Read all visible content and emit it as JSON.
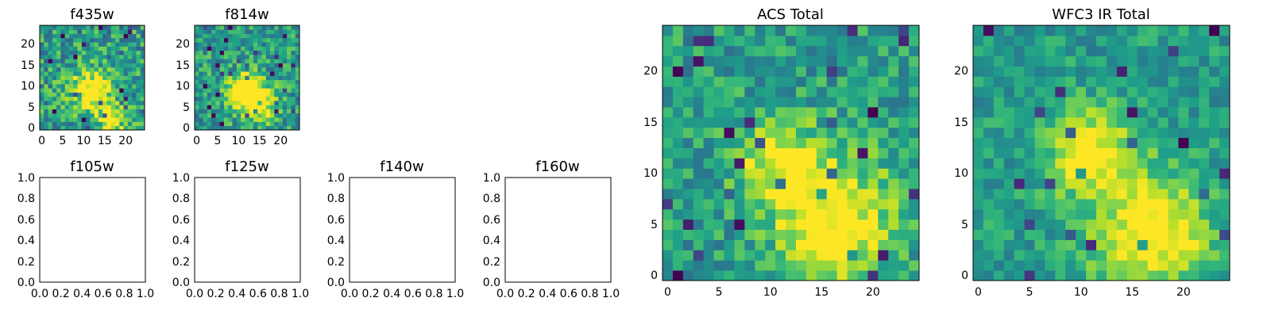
{
  "chart_data": [
    {
      "type": "heatmap",
      "title": "f435w",
      "size": 25,
      "xticks": [
        "0",
        "5",
        "10",
        "15",
        "20"
      ],
      "yticks": [
        "0",
        "5",
        "10",
        "15",
        "20"
      ],
      "xlim": [
        -0.5,
        24.5
      ],
      "ylim": [
        -0.5,
        24.5
      ],
      "colormap": "viridis",
      "seed": 11,
      "noise": 0.5,
      "blobs": [
        [
          12,
          9,
          3.5,
          0.55
        ],
        [
          17,
          2,
          2.5,
          0.5
        ]
      ]
    },
    {
      "type": "heatmap",
      "title": "f814w",
      "size": 25,
      "xticks": [
        "0",
        "5",
        "10",
        "15",
        "20"
      ],
      "yticks": [
        "0",
        "5",
        "10",
        "15",
        "20"
      ],
      "xlim": [
        -0.5,
        24.5
      ],
      "ylim": [
        -0.5,
        24.5
      ],
      "colormap": "viridis",
      "seed": 23,
      "noise": 0.45,
      "blobs": [
        [
          11,
          9,
          3,
          0.6
        ],
        [
          15,
          6,
          3,
          0.5
        ]
      ]
    },
    {
      "type": "empty",
      "title": "f105w",
      "xticks": [
        "0.0",
        "0.2",
        "0.4",
        "0.6",
        "0.8",
        "1.0"
      ],
      "yticks": [
        "0.0",
        "0.2",
        "0.4",
        "0.6",
        "0.8",
        "1.0"
      ],
      "xlim": [
        0,
        1
      ],
      "ylim": [
        0,
        1
      ]
    },
    {
      "type": "empty",
      "title": "f125w",
      "xticks": [
        "0.0",
        "0.2",
        "0.4",
        "0.6",
        "0.8",
        "1.0"
      ],
      "yticks": [
        "0.0",
        "0.2",
        "0.4",
        "0.6",
        "0.8",
        "1.0"
      ],
      "xlim": [
        0,
        1
      ],
      "ylim": [
        0,
        1
      ]
    },
    {
      "type": "empty",
      "title": "f140w",
      "xticks": [
        "0.0",
        "0.2",
        "0.4",
        "0.6",
        "0.8",
        "1.0"
      ],
      "yticks": [
        "0.0",
        "0.2",
        "0.4",
        "0.6",
        "0.8",
        "1.0"
      ],
      "xlim": [
        0,
        1
      ],
      "ylim": [
        0,
        1
      ]
    },
    {
      "type": "empty",
      "title": "f160w",
      "xticks": [
        "0.0",
        "0.2",
        "0.4",
        "0.6",
        "0.8",
        "1.0"
      ],
      "yticks": [
        "0.0",
        "0.2",
        "0.4",
        "0.6",
        "0.8",
        "1.0"
      ],
      "xlim": [
        0,
        1
      ],
      "ylim": [
        0,
        1
      ]
    },
    {
      "type": "heatmap",
      "title": "ACS Total",
      "size": 25,
      "xticks": [
        "0",
        "5",
        "10",
        "15",
        "20"
      ],
      "yticks": [
        "0",
        "5",
        "10",
        "15",
        "20"
      ],
      "xlim": [
        -0.5,
        24.5
      ],
      "ylim": [
        -0.5,
        24.5
      ],
      "colormap": "viridis",
      "seed": 37,
      "noise": 0.38,
      "blobs": [
        [
          11,
          11,
          3,
          0.45
        ],
        [
          17,
          6,
          4,
          0.42
        ],
        [
          15,
          2,
          3,
          0.3
        ]
      ]
    },
    {
      "type": "heatmap",
      "title": "WFC3 IR Total",
      "size": 25,
      "xticks": [
        "0",
        "5",
        "10",
        "15",
        "20"
      ],
      "yticks": [
        "0",
        "5",
        "10",
        "15",
        "20"
      ],
      "xlim": [
        -0.5,
        24.5
      ],
      "ylim": [
        -0.5,
        24.5
      ],
      "colormap": "viridis",
      "seed": 53,
      "noise": 0.3,
      "blobs": [
        [
          11,
          12,
          3,
          0.5
        ],
        [
          17,
          4,
          4,
          0.55
        ]
      ]
    }
  ]
}
